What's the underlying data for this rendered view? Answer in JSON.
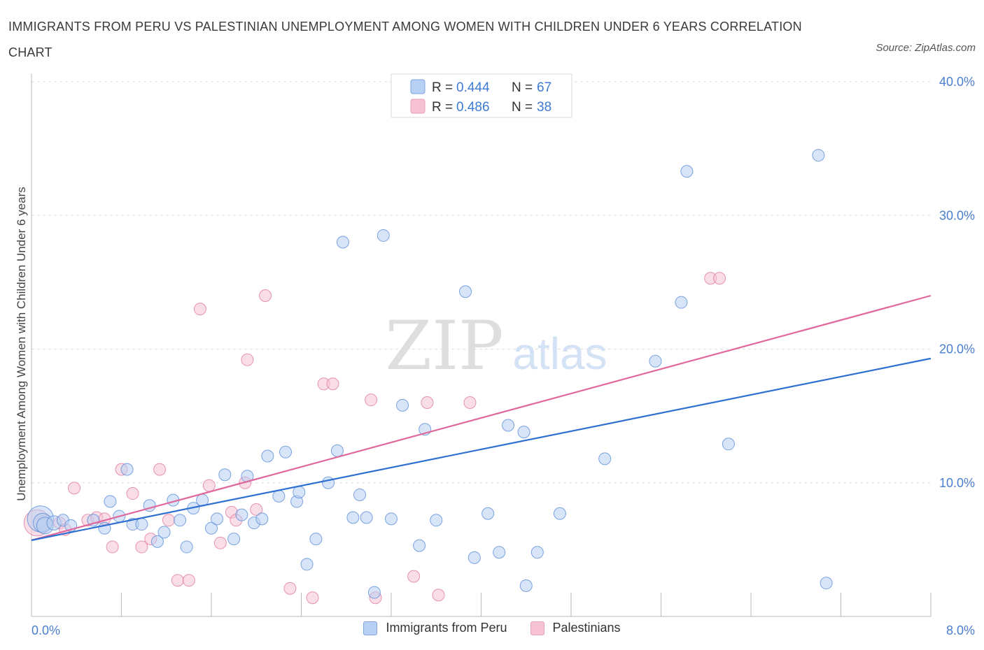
{
  "title": "IMMIGRANTS FROM PERU VS PALESTINIAN UNEMPLOYMENT AMONG WOMEN WITH CHILDREN UNDER 6 YEARS CORRELATION CHART",
  "source": "Source: ZipAtlas.com",
  "watermark": {
    "zip": "ZIP",
    "atlas": "atlas"
  },
  "colors": {
    "blue": "#5b8fd8",
    "blue_fill": "#b8d0f3",
    "pink": "#e07aa0",
    "pink_fill": "#f6c2d4",
    "blue_line": "#2f6fd0",
    "pink_line": "#e0689a",
    "axis_text": "#4a7fd0"
  },
  "legend": [
    {
      "r_label": "R = ",
      "r_value": "0.444",
      "n_label": "N = ",
      "n_value": "67"
    },
    {
      "r_label": "R = ",
      "r_value": "0.486",
      "n_label": "N = ",
      "n_value": "38"
    }
  ],
  "chart_data": {
    "type": "scatter",
    "ylabel": "Unemployment Among Women with Children Under 6 years",
    "x_tick_labels": [
      "0.0%",
      "8.0%"
    ],
    "y_tick_labels": [
      "10.0%",
      "20.0%",
      "30.0%",
      "40.0%"
    ],
    "xlim": [
      0,
      8
    ],
    "ylim": [
      0,
      40
    ],
    "y_ticks": [
      10,
      20,
      30,
      40
    ],
    "grid": true,
    "legend_position": "top-center",
    "series": [
      {
        "name": "Immigrants from Peru",
        "trend": {
          "x": [
            0,
            8
          ],
          "y": [
            5.7,
            19.3
          ]
        },
        "points": [
          [
            0.08,
            7.3,
            2.2
          ],
          [
            0.1,
            7.0,
            1.6
          ],
          [
            0.12,
            6.8,
            1.4
          ],
          [
            0.2,
            7.0,
            1.2
          ],
          [
            0.28,
            7.2,
            1.0
          ],
          [
            0.35,
            6.8,
            1.0
          ],
          [
            0.55,
            7.2,
            1.0
          ],
          [
            0.65,
            6.6,
            1.0
          ],
          [
            0.7,
            8.6,
            1.0
          ],
          [
            0.78,
            7.5,
            1.0
          ],
          [
            0.85,
            11.0,
            1.0
          ],
          [
            0.9,
            6.9,
            1.0
          ],
          [
            0.98,
            6.9,
            1.0
          ],
          [
            1.05,
            8.3,
            1.0
          ],
          [
            1.12,
            5.6,
            1.0
          ],
          [
            1.18,
            6.3,
            1.0
          ],
          [
            1.26,
            8.7,
            1.0
          ],
          [
            1.32,
            7.2,
            1.0
          ],
          [
            1.38,
            5.2,
            1.0
          ],
          [
            1.44,
            8.1,
            1.0
          ],
          [
            1.52,
            8.7,
            1.0
          ],
          [
            1.6,
            6.6,
            1.0
          ],
          [
            1.65,
            7.3,
            1.0
          ],
          [
            1.72,
            10.6,
            1.0
          ],
          [
            1.8,
            5.8,
            1.0
          ],
          [
            1.87,
            7.6,
            1.0
          ],
          [
            1.92,
            10.5,
            1.0
          ],
          [
            1.98,
            7.0,
            1.0
          ],
          [
            2.05,
            7.3,
            1.0
          ],
          [
            2.1,
            12.0,
            1.0
          ],
          [
            2.2,
            9.0,
            1.0
          ],
          [
            2.26,
            12.3,
            1.0
          ],
          [
            2.36,
            8.6,
            1.0
          ],
          [
            2.38,
            9.3,
            1.0
          ],
          [
            2.45,
            3.9,
            1.0
          ],
          [
            2.53,
            5.8,
            1.0
          ],
          [
            2.64,
            10.0,
            1.0
          ],
          [
            2.72,
            12.4,
            1.0
          ],
          [
            2.77,
            28.0,
            1.0
          ],
          [
            2.86,
            7.4,
            1.0
          ],
          [
            2.92,
            9.1,
            1.0
          ],
          [
            2.98,
            7.4,
            1.0
          ],
          [
            3.05,
            1.8,
            1.0
          ],
          [
            3.13,
            28.5,
            1.0
          ],
          [
            3.2,
            7.3,
            1.0
          ],
          [
            3.3,
            15.8,
            1.0
          ],
          [
            3.45,
            5.3,
            1.0
          ],
          [
            3.5,
            14.0,
            1.0
          ],
          [
            3.6,
            7.2,
            1.0
          ],
          [
            3.86,
            24.3,
            1.0
          ],
          [
            3.94,
            4.4,
            1.0
          ],
          [
            4.06,
            7.7,
            1.0
          ],
          [
            4.16,
            4.8,
            1.0
          ],
          [
            4.24,
            14.3,
            1.0
          ],
          [
            4.38,
            13.8,
            1.0
          ],
          [
            4.4,
            2.3,
            1.0
          ],
          [
            4.5,
            4.8,
            1.0
          ],
          [
            4.7,
            7.7,
            1.0
          ],
          [
            5.1,
            11.8,
            1.0
          ],
          [
            5.55,
            19.1,
            1.0
          ],
          [
            5.78,
            23.5,
            1.0
          ],
          [
            5.83,
            33.3,
            1.0
          ],
          [
            6.2,
            12.9,
            1.0
          ],
          [
            7.0,
            34.5,
            1.0
          ],
          [
            7.07,
            2.5,
            1.0
          ]
        ]
      },
      {
        "name": "Palestinians",
        "trend": {
          "x": [
            0,
            8
          ],
          "y": [
            5.7,
            24.0
          ]
        },
        "points": [
          [
            0.05,
            7.0,
            2.2
          ],
          [
            0.12,
            7.0,
            1.3
          ],
          [
            0.25,
            7.0,
            1.0
          ],
          [
            0.3,
            6.5,
            1.0
          ],
          [
            0.38,
            9.6,
            1.0
          ],
          [
            0.5,
            7.2,
            1.0
          ],
          [
            0.58,
            7.4,
            1.0
          ],
          [
            0.65,
            7.3,
            1.0
          ],
          [
            0.72,
            5.2,
            1.0
          ],
          [
            0.8,
            11.0,
            1.0
          ],
          [
            0.9,
            9.2,
            1.0
          ],
          [
            0.98,
            5.2,
            1.0
          ],
          [
            1.06,
            5.8,
            1.0
          ],
          [
            1.14,
            11.0,
            1.0
          ],
          [
            1.22,
            7.2,
            1.0
          ],
          [
            1.3,
            2.7,
            1.0
          ],
          [
            1.4,
            2.7,
            1.0
          ],
          [
            1.5,
            23.0,
            1.0
          ],
          [
            1.58,
            9.8,
            1.0
          ],
          [
            1.68,
            5.5,
            1.0
          ],
          [
            1.78,
            7.8,
            1.0
          ],
          [
            1.82,
            7.2,
            1.0
          ],
          [
            1.9,
            10.0,
            1.0
          ],
          [
            1.92,
            19.2,
            1.0
          ],
          [
            2.0,
            8.0,
            1.0
          ],
          [
            2.08,
            24.0,
            1.0
          ],
          [
            2.3,
            2.1,
            1.0
          ],
          [
            2.5,
            1.4,
            1.0
          ],
          [
            2.6,
            17.4,
            1.0
          ],
          [
            2.68,
            17.4,
            1.0
          ],
          [
            3.02,
            16.2,
            1.0
          ],
          [
            3.06,
            1.4,
            1.0
          ],
          [
            3.4,
            3.0,
            1.0
          ],
          [
            3.52,
            16.0,
            1.0
          ],
          [
            3.62,
            1.6,
            1.0
          ],
          [
            3.9,
            16.0,
            1.0
          ],
          [
            6.04,
            25.3,
            1.0
          ],
          [
            6.12,
            25.3,
            1.0
          ]
        ]
      }
    ]
  }
}
